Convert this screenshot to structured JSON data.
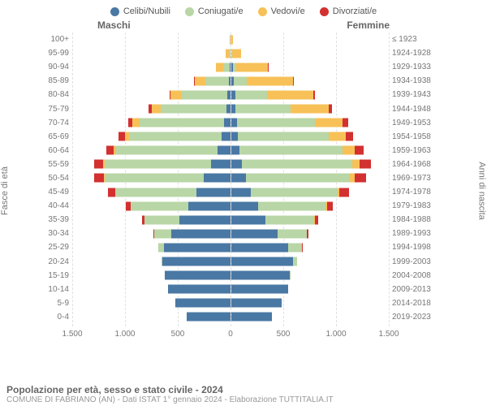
{
  "legend": [
    {
      "label": "Celibi/Nubili",
      "color": "#4a78a4"
    },
    {
      "label": "Coniugati/e",
      "color": "#b9d6a6"
    },
    {
      "label": "Vedovi/e",
      "color": "#f7c158"
    },
    {
      "label": "Divorziati/e",
      "color": "#d33030"
    }
  ],
  "header_male": "Maschi",
  "header_female": "Femmine",
  "axis_left_title": "Fasce di età",
  "axis_right_title": "Anni di nascita",
  "x_axis": {
    "max": 1500,
    "ticks": [
      1500,
      1000,
      500,
      0,
      500,
      1000,
      1500
    ],
    "labels": [
      "1.500",
      "1.000",
      "500",
      "0",
      "500",
      "1.000",
      "1.500"
    ]
  },
  "colors": {
    "celibi": "#4a78a4",
    "coniugati": "#b9d6a6",
    "vedovi": "#f7c158",
    "divorziati": "#d33030"
  },
  "rows": [
    {
      "age": "100+",
      "birth": "≤ 1923",
      "m": {
        "c": 0,
        "co": 0,
        "v": 5,
        "d": 0
      },
      "f": {
        "c": 0,
        "co": 0,
        "v": 20,
        "d": 0
      }
    },
    {
      "age": "95-99",
      "birth": "1924-1928",
      "m": {
        "c": 0,
        "co": 10,
        "v": 30,
        "d": 0
      },
      "f": {
        "c": 5,
        "co": 5,
        "v": 90,
        "d": 0
      }
    },
    {
      "age": "90-94",
      "birth": "1929-1933",
      "m": {
        "c": 5,
        "co": 60,
        "v": 70,
        "d": 0
      },
      "f": {
        "c": 20,
        "co": 30,
        "v": 300,
        "d": 5
      }
    },
    {
      "age": "85-89",
      "birth": "1934-1938",
      "m": {
        "c": 15,
        "co": 220,
        "v": 100,
        "d": 5
      },
      "f": {
        "c": 30,
        "co": 120,
        "v": 440,
        "d": 10
      }
    },
    {
      "age": "80-84",
      "birth": "1939-1943",
      "m": {
        "c": 25,
        "co": 430,
        "v": 110,
        "d": 10
      },
      "f": {
        "c": 40,
        "co": 300,
        "v": 440,
        "d": 20
      }
    },
    {
      "age": "75-79",
      "birth": "1944-1948",
      "m": {
        "c": 35,
        "co": 620,
        "v": 90,
        "d": 25
      },
      "f": {
        "c": 45,
        "co": 520,
        "v": 360,
        "d": 35
      }
    },
    {
      "age": "70-74",
      "birth": "1949-1953",
      "m": {
        "c": 55,
        "co": 800,
        "v": 70,
        "d": 40
      },
      "f": {
        "c": 55,
        "co": 740,
        "v": 260,
        "d": 55
      }
    },
    {
      "age": "65-69",
      "birth": "1954-1958",
      "m": {
        "c": 80,
        "co": 880,
        "v": 40,
        "d": 55
      },
      "f": {
        "c": 65,
        "co": 860,
        "v": 160,
        "d": 70
      }
    },
    {
      "age": "60-64",
      "birth": "1959-1963",
      "m": {
        "c": 120,
        "co": 960,
        "v": 25,
        "d": 70
      },
      "f": {
        "c": 80,
        "co": 980,
        "v": 110,
        "d": 90
      }
    },
    {
      "age": "55-59",
      "birth": "1964-1968",
      "m": {
        "c": 180,
        "co": 1010,
        "v": 15,
        "d": 85
      },
      "f": {
        "c": 100,
        "co": 1050,
        "v": 70,
        "d": 110
      }
    },
    {
      "age": "50-54",
      "birth": "1969-1973",
      "m": {
        "c": 250,
        "co": 940,
        "v": 10,
        "d": 90
      },
      "f": {
        "c": 140,
        "co": 990,
        "v": 40,
        "d": 110
      }
    },
    {
      "age": "45-49",
      "birth": "1974-1978",
      "m": {
        "c": 320,
        "co": 760,
        "v": 5,
        "d": 70
      },
      "f": {
        "c": 190,
        "co": 820,
        "v": 20,
        "d": 90
      }
    },
    {
      "age": "40-44",
      "birth": "1979-1983",
      "m": {
        "c": 400,
        "co": 540,
        "v": 2,
        "d": 45
      },
      "f": {
        "c": 260,
        "co": 640,
        "v": 10,
        "d": 55
      }
    },
    {
      "age": "35-39",
      "birth": "1984-1988",
      "m": {
        "c": 480,
        "co": 330,
        "v": 0,
        "d": 25
      },
      "f": {
        "c": 330,
        "co": 460,
        "v": 5,
        "d": 30
      }
    },
    {
      "age": "30-34",
      "birth": "1989-1993",
      "m": {
        "c": 560,
        "co": 160,
        "v": 0,
        "d": 10
      },
      "f": {
        "c": 440,
        "co": 280,
        "v": 2,
        "d": 15
      }
    },
    {
      "age": "25-29",
      "birth": "1994-1998",
      "m": {
        "c": 630,
        "co": 50,
        "v": 0,
        "d": 3
      },
      "f": {
        "c": 540,
        "co": 130,
        "v": 0,
        "d": 5
      }
    },
    {
      "age": "20-24",
      "birth": "1999-2003",
      "m": {
        "c": 640,
        "co": 10,
        "v": 0,
        "d": 0
      },
      "f": {
        "c": 590,
        "co": 40,
        "v": 0,
        "d": 0
      }
    },
    {
      "age": "15-19",
      "birth": "2004-2008",
      "m": {
        "c": 620,
        "co": 0,
        "v": 0,
        "d": 0
      },
      "f": {
        "c": 560,
        "co": 2,
        "v": 0,
        "d": 0
      }
    },
    {
      "age": "10-14",
      "birth": "2009-2013",
      "m": {
        "c": 590,
        "co": 0,
        "v": 0,
        "d": 0
      },
      "f": {
        "c": 540,
        "co": 0,
        "v": 0,
        "d": 0
      }
    },
    {
      "age": "5-9",
      "birth": "2014-2018",
      "m": {
        "c": 520,
        "co": 0,
        "v": 0,
        "d": 0
      },
      "f": {
        "c": 480,
        "co": 0,
        "v": 0,
        "d": 0
      }
    },
    {
      "age": "0-4",
      "birth": "2019-2023",
      "m": {
        "c": 410,
        "co": 0,
        "v": 0,
        "d": 0
      },
      "f": {
        "c": 390,
        "co": 0,
        "v": 0,
        "d": 0
      }
    }
  ],
  "title": "Popolazione per età, sesso e stato civile - 2024",
  "subtitle": "COMUNE DI FABRIANO (AN) - Dati ISTAT 1° gennaio 2024 - Elaborazione TUTTITALIA.IT"
}
